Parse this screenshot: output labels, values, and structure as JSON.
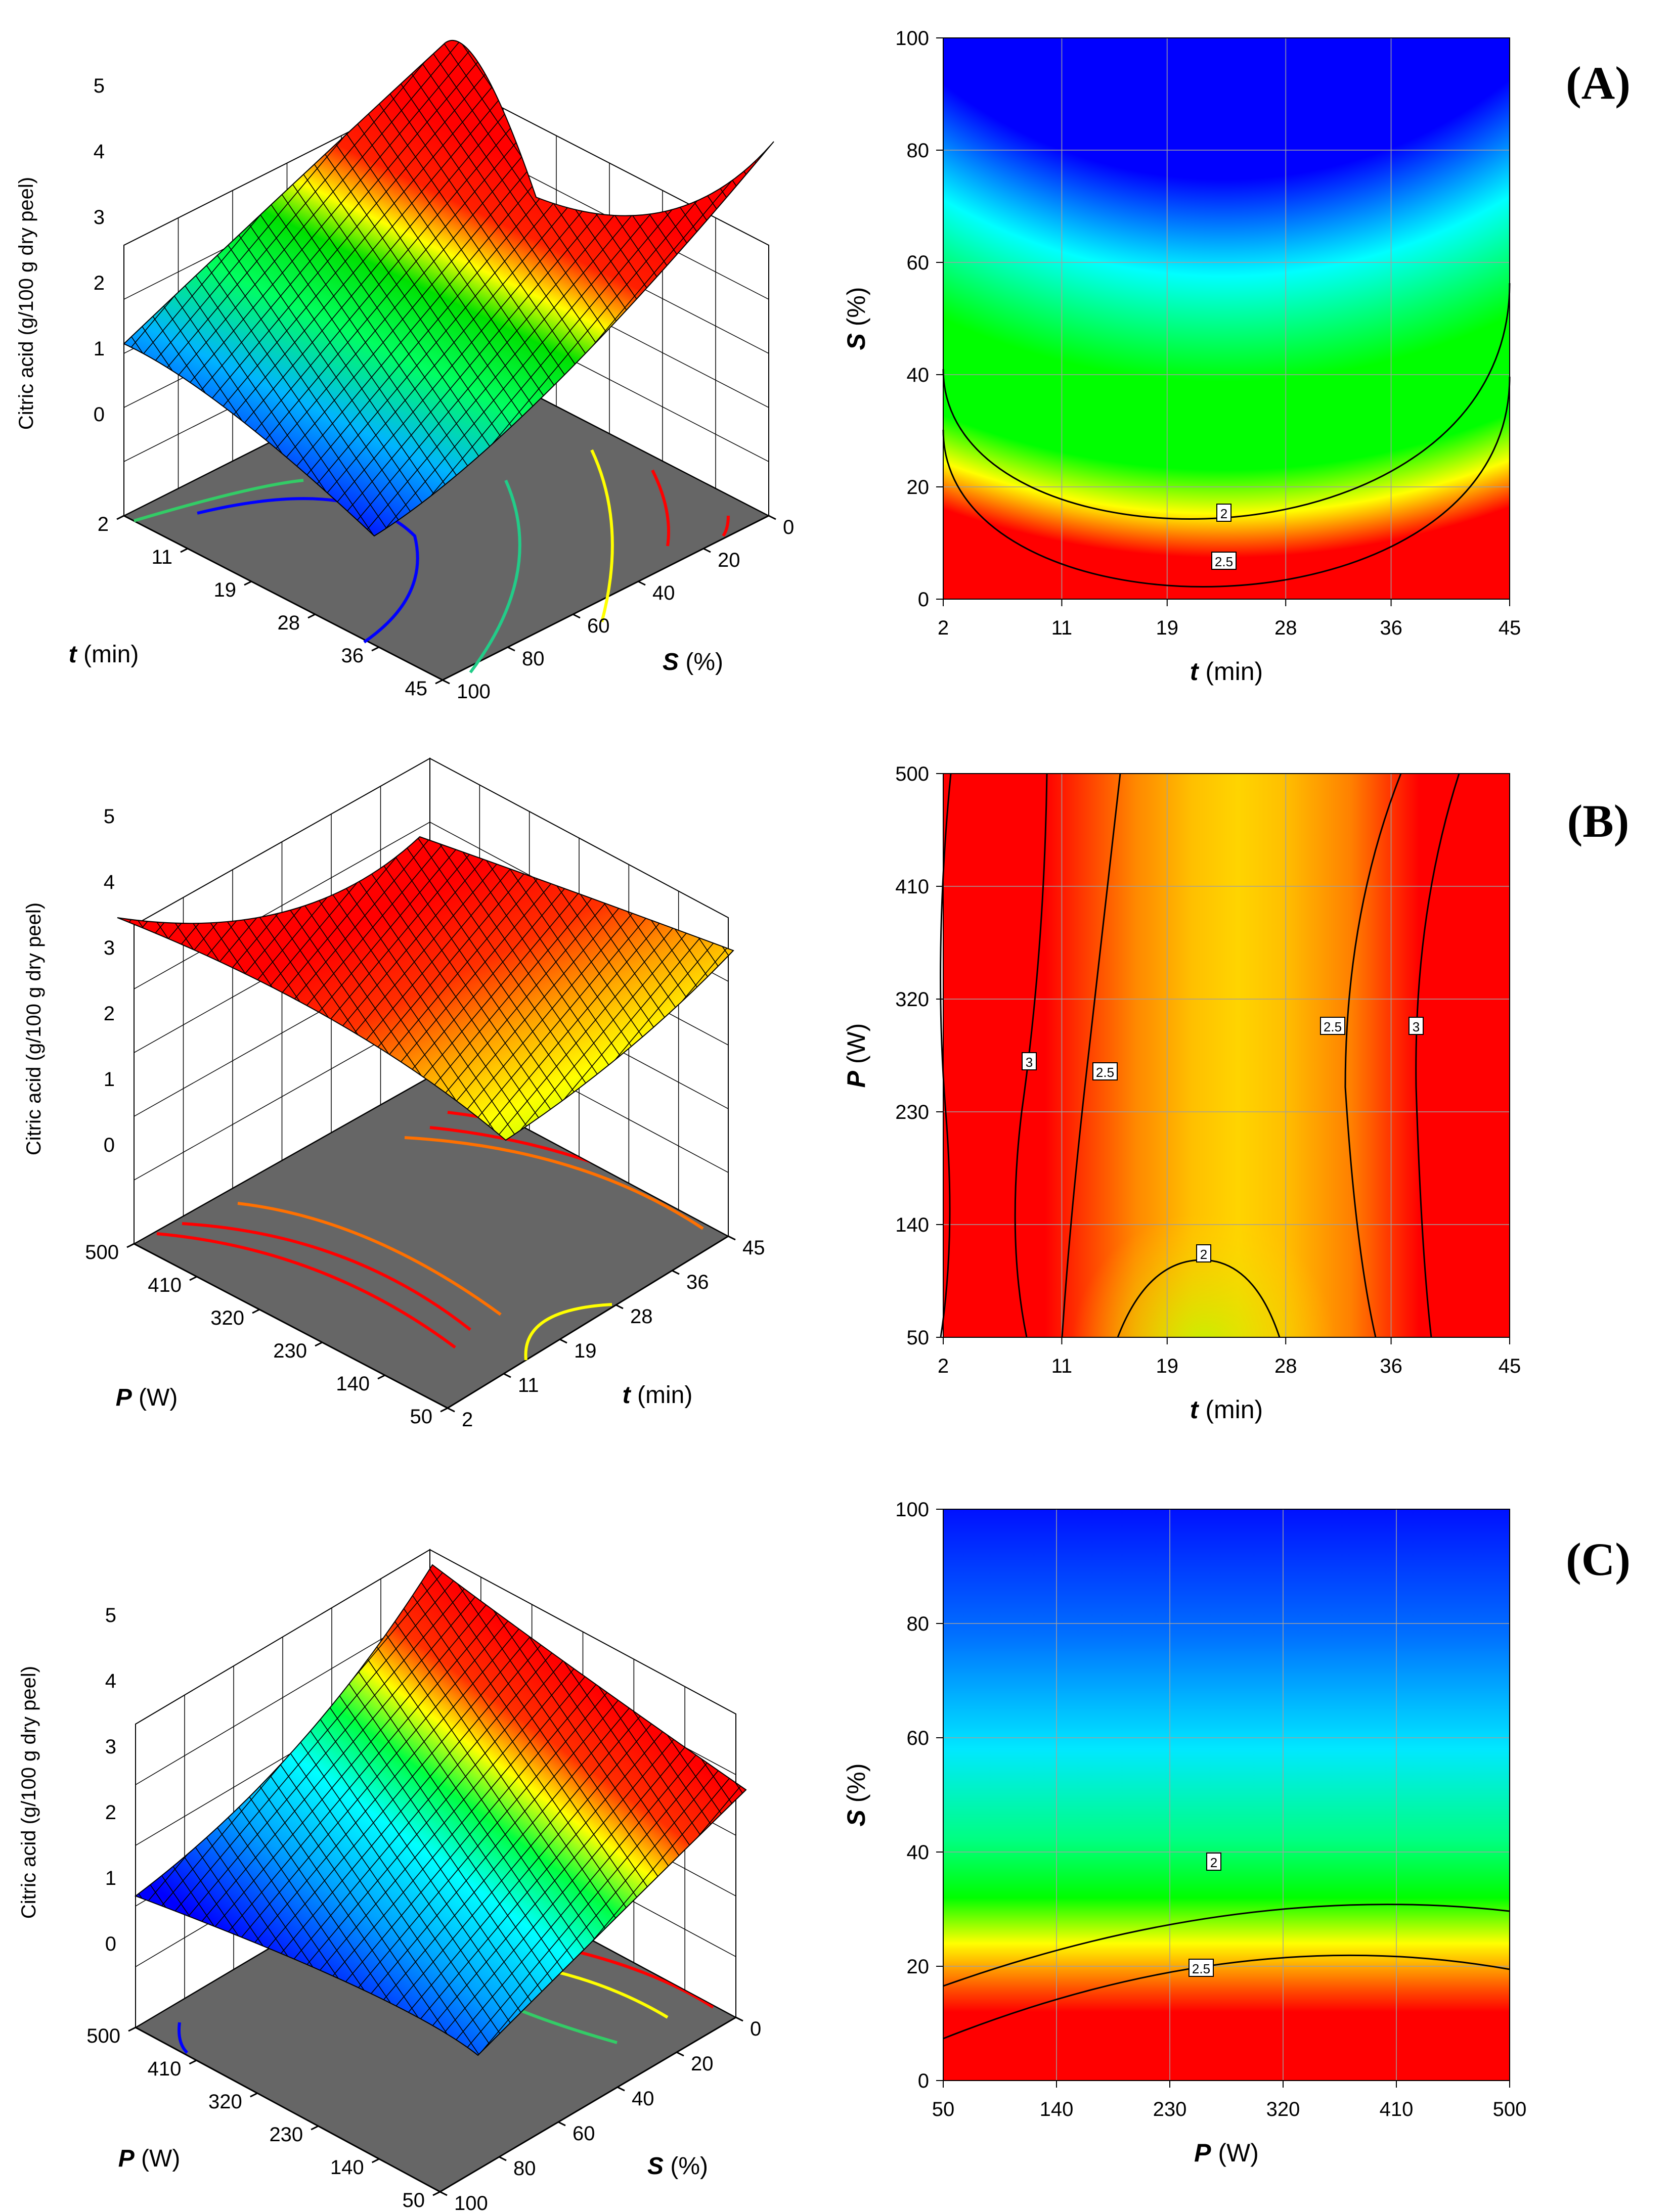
{
  "chart_data": [
    {
      "id": "A",
      "panel_label": "(A)",
      "type": "surface3d_with_contour",
      "z_axis": {
        "label": "Citric acid (g/100 g dry peel)",
        "ticks": [
          "0",
          "1",
          "2",
          "3",
          "4",
          "5"
        ],
        "range": [
          0,
          5
        ]
      },
      "left_axis": {
        "label_var": "t",
        "label_unit": " (min)",
        "ticks": [
          "2",
          "11",
          "19",
          "28",
          "36",
          "45"
        ]
      },
      "right_axis": {
        "label_var": "S",
        "label_unit": " (%)",
        "ticks": [
          "100",
          "80",
          "60",
          "40",
          "20",
          "0"
        ]
      },
      "contour_plot": {
        "x": {
          "label_var": "t",
          "label_unit": " (min)",
          "ticks": [
            "2",
            "11",
            "19",
            "28",
            "36",
            "45"
          ],
          "range": [
            2,
            45
          ]
        },
        "y": {
          "label_var": "S",
          "label_unit": " (%)",
          "ticks": [
            "0",
            "20",
            "40",
            "60",
            "80",
            "100"
          ],
          "range": [
            0,
            100
          ]
        },
        "contour_labels": [
          "2",
          "2.5"
        ]
      }
    },
    {
      "id": "B",
      "panel_label": "(B)",
      "type": "surface3d_with_contour",
      "z_axis": {
        "label": "Citric acid (g/100 g dry peel)",
        "ticks": [
          "0",
          "1",
          "2",
          "3",
          "4",
          "5"
        ],
        "range": [
          0,
          5
        ]
      },
      "left_axis": {
        "label_var": "P",
        "label_unit": " (W)",
        "ticks": [
          "500",
          "410",
          "320",
          "230",
          "140",
          "50"
        ]
      },
      "right_axis": {
        "label_var": "t",
        "label_unit": " (min)",
        "ticks": [
          "2",
          "11",
          "19",
          "28",
          "36",
          "45"
        ]
      },
      "contour_plot": {
        "x": {
          "label_var": "t",
          "label_unit": " (min)",
          "ticks": [
            "2",
            "11",
            "19",
            "28",
            "36",
            "45"
          ],
          "range": [
            2,
            45
          ]
        },
        "y": {
          "label_var": "P",
          "label_unit": " (W)",
          "ticks": [
            "50",
            "140",
            "230",
            "320",
            "410",
            "500"
          ],
          "range": [
            50,
            500
          ]
        },
        "contour_labels": [
          "3",
          "2.5",
          "2",
          "2.5",
          "3"
        ]
      }
    },
    {
      "id": "C",
      "panel_label": "(C)",
      "type": "surface3d_with_contour",
      "z_axis": {
        "label": "Citric acid (g/100 g dry peel)",
        "ticks": [
          "0",
          "1",
          "2",
          "3",
          "4",
          "5"
        ],
        "range": [
          0,
          5
        ]
      },
      "left_axis": {
        "label_var": "P",
        "label_unit": " (W)",
        "ticks": [
          "500",
          "410",
          "320",
          "230",
          "140",
          "50"
        ]
      },
      "right_axis": {
        "label_var": "S",
        "label_unit": " (%)",
        "ticks": [
          "100",
          "80",
          "60",
          "40",
          "20",
          "0"
        ]
      },
      "contour_plot": {
        "x": {
          "label_var": "P",
          "label_unit": " (W)",
          "ticks": [
            "50",
            "140",
            "230",
            "320",
            "410",
            "500"
          ],
          "range": [
            50,
            500
          ]
        },
        "y": {
          "label_var": "S",
          "label_unit": " (%)",
          "ticks": [
            "0",
            "20",
            "40",
            "60",
            "80",
            "100"
          ],
          "range": [
            0,
            100
          ]
        },
        "contour_labels": [
          "2",
          "2.5"
        ]
      }
    }
  ]
}
